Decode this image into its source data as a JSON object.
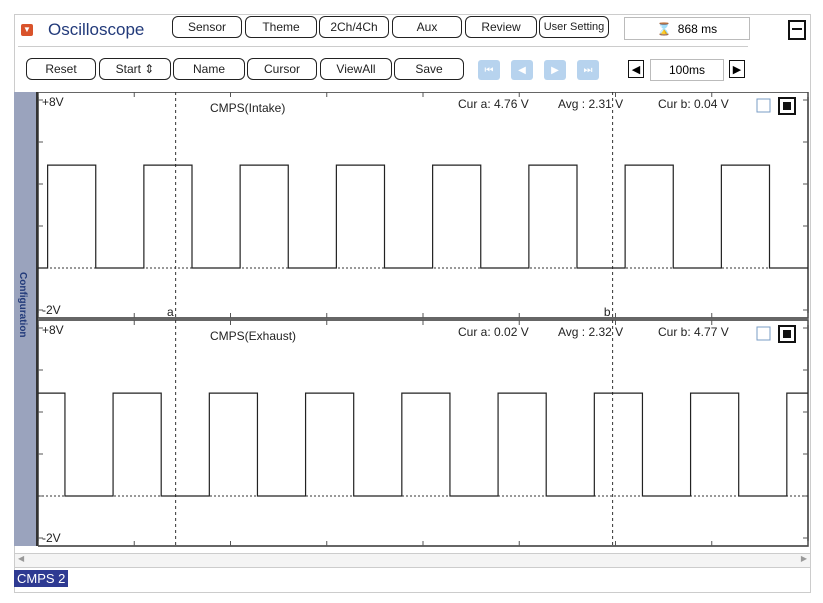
{
  "header": {
    "title": "Oscilloscope",
    "buttons": [
      "Sensor",
      "Theme",
      "2Ch/4Ch",
      "Aux",
      "Review",
      "User Setting"
    ],
    "time_readout": "868 ms"
  },
  "toolbar": {
    "buttons": [
      "Reset",
      "Start",
      "Name",
      "Cursor",
      "ViewAll",
      "Save"
    ],
    "timebase": "100ms"
  },
  "sidebar": {
    "label": "Configuration"
  },
  "footer": {
    "channel_label": "CMPS 2"
  },
  "colors": {
    "accent": "#223a7a",
    "nav_disabled": "#b7d3ee",
    "channel_badge": "#2e3a92"
  },
  "chart_data": [
    {
      "type": "line",
      "title": "CMPS(Intake)",
      "ymax_label": "+8V",
      "ymin_label": "-2V",
      "ylim": [
        -2,
        8
      ],
      "xlim_ms": [
        0,
        800
      ],
      "cur_a": "Cur a: 4.76 V",
      "avg": "Avg  : 2.31 V",
      "cur_b": "Cur b: 0.04 V",
      "cursor_a_label": "a",
      "cursor_b_label": "b",
      "high_v": 4.9,
      "low_v": 0.0,
      "period_ms": 100,
      "first_rise_ms": 10,
      "pulse_width_ms": 50,
      "cursor_a_ms": 143,
      "cursor_b_ms": 597
    },
    {
      "type": "line",
      "title": "CMPS(Exhaust)",
      "ymax_label": "+8V",
      "ymin_label": "-2V",
      "ylim": [
        -2,
        8
      ],
      "xlim_ms": [
        0,
        800
      ],
      "cur_a": "Cur a: 0.02 V",
      "avg": "Avg  : 2.32 V",
      "cur_b": "Cur b: 4.77 V",
      "high_v": 4.9,
      "low_v": 0.0,
      "period_ms": 100,
      "first_rise_ms": 78,
      "pulse_width_ms": 50,
      "cursor_a_ms": 143,
      "cursor_b_ms": 597
    }
  ]
}
